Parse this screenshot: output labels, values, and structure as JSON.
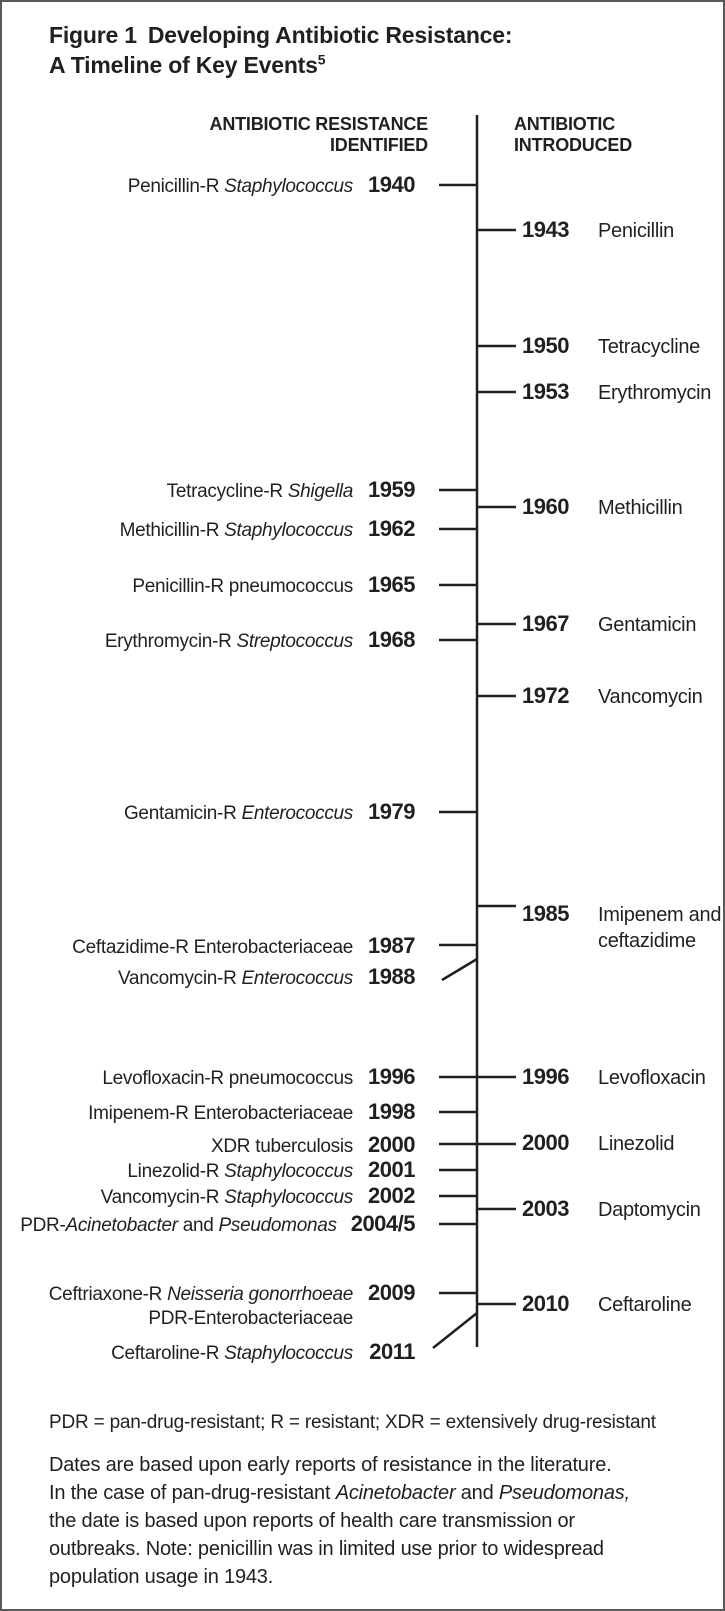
{
  "figure_title": {
    "label": "Figure 1",
    "line1": "Developing Antibiotic Resistance:",
    "line2": "A Timeline of Key Events",
    "line2_superscript": "5"
  },
  "columns": {
    "left_header": [
      "ANTIBIOTIC RESISTANCE",
      "IDENTIFIED"
    ],
    "right_header": [
      "ANTIBIOTIC",
      "INTRODUCED"
    ]
  },
  "resistance_identified": [
    {
      "year": "1940",
      "label_segments": [
        {
          "text": "Penicillin-R "
        },
        {
          "text": "Staphylococcus",
          "italic": true
        }
      ]
    },
    {
      "year": "1959",
      "label_segments": [
        {
          "text": "Tetracycline-R "
        },
        {
          "text": "Shigella",
          "italic": true
        }
      ]
    },
    {
      "year": "1962",
      "label_segments": [
        {
          "text": "Methicillin-R "
        },
        {
          "text": "Staphylococcus",
          "italic": true
        }
      ]
    },
    {
      "year": "1965",
      "label_segments": [
        {
          "text": "Penicillin-R pneumococcus"
        }
      ]
    },
    {
      "year": "1968",
      "label_segments": [
        {
          "text": "Erythromycin-R "
        },
        {
          "text": "Streptococcus",
          "italic": true
        }
      ]
    },
    {
      "year": "1979",
      "label_segments": [
        {
          "text": "Gentamicin-R "
        },
        {
          "text": "Enterococcus",
          "italic": true
        }
      ]
    },
    {
      "year": "1987",
      "label_segments": [
        {
          "text": "Ceftazidime-R Enterobacteriaceae"
        }
      ]
    },
    {
      "year": "1988",
      "label_segments": [
        {
          "text": "Vancomycin-R "
        },
        {
          "text": "Enterococcus",
          "italic": true
        }
      ]
    },
    {
      "year": "1996",
      "label_segments": [
        {
          "text": "Levofloxacin-R pneumococcus"
        }
      ]
    },
    {
      "year": "1998",
      "label_segments": [
        {
          "text": "Imipenem-R Enterobacteriaceae"
        }
      ]
    },
    {
      "year": "2000",
      "label_segments": [
        {
          "text": "XDR tuberculosis"
        }
      ]
    },
    {
      "year": "2001",
      "label_segments": [
        {
          "text": "Linezolid-R "
        },
        {
          "text": "Staphylococcus",
          "italic": true
        }
      ]
    },
    {
      "year": "2002",
      "label_segments": [
        {
          "text": "Vancomycin-R "
        },
        {
          "text": "Staphylococcus",
          "italic": true
        }
      ]
    },
    {
      "year": "2004/5",
      "label_segments": [
        {
          "text": "PDR-"
        },
        {
          "text": "Acinetobacter",
          "italic": true
        },
        {
          "text": " and "
        },
        {
          "text": "Pseudomonas",
          "italic": true
        }
      ]
    },
    {
      "year": "2009",
      "label_segments": [
        {
          "text": "Ceftriaxone-R "
        },
        {
          "text": "Neisseria gonorrhoeae",
          "italic": true
        }
      ]
    },
    {
      "year": "",
      "label_segments": [
        {
          "text": "PDR-Enterobacteriaceae"
        }
      ]
    },
    {
      "year": "2011",
      "label_segments": [
        {
          "text": "Ceftaroline-R "
        },
        {
          "text": "Staphylococcus",
          "italic": true
        }
      ]
    }
  ],
  "antibiotic_introduced": [
    {
      "year": "1943",
      "name": "Penicillin"
    },
    {
      "year": "1950",
      "name": "Tetracycline"
    },
    {
      "year": "1953",
      "name": "Erythromycin"
    },
    {
      "year": "1960",
      "name": "Methicillin"
    },
    {
      "year": "1967",
      "name": "Gentamicin"
    },
    {
      "year": "1972",
      "name": "Vancomycin"
    },
    {
      "year": "1985",
      "name": "Imipenem and ceftazidime"
    },
    {
      "year": "1996",
      "name": "Levofloxacin"
    },
    {
      "year": "2000",
      "name": "Linezolid"
    },
    {
      "year": "2003",
      "name": "Daptomycin"
    },
    {
      "year": "2010",
      "name": "Ceftaroline"
    }
  ],
  "footnotes": {
    "abbreviations": "PDR = pan-drug-resistant; R = resistant; XDR = extensively drug-resistant",
    "note_segments": [
      {
        "text": "Dates are based upon early reports of resistance in the literature.",
        "br": true
      },
      {
        "text": "In the case of pan-drug-resistant "
      },
      {
        "text": "Acinetobacter",
        "italic": true
      },
      {
        "text": " and "
      },
      {
        "text": "Pseudomonas,",
        "italic": true,
        "br": true
      },
      {
        "text": "the date is based upon reports of health care transmission or",
        "br": true
      },
      {
        "text": "outbreaks. Note: penicillin was in limited use prior to widespread",
        "br": true
      },
      {
        "text": "population usage in 1943."
      }
    ]
  },
  "colors": {
    "text": "#231f20",
    "border": "#58595b"
  }
}
